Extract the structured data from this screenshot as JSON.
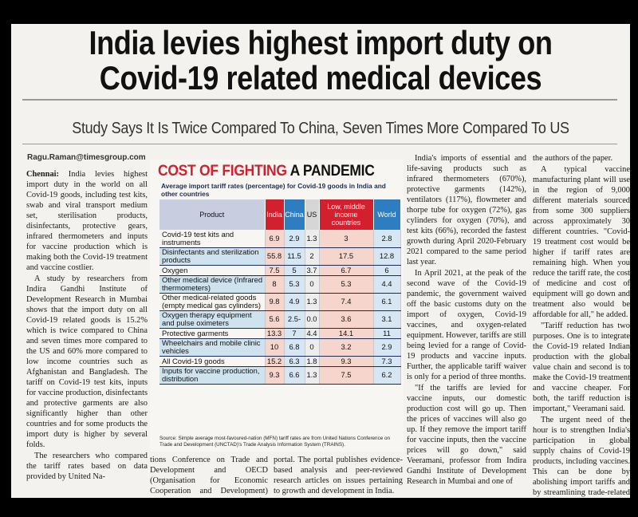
{
  "headline": {
    "line1": "India levies highest import duty on",
    "line2": "Covid-19 related medical devices"
  },
  "subhead": "Study Says It Is Twice Compared To China, Seven Times More Compared To US",
  "byline": "Ragu.Raman@timesgroup.com",
  "infographic": {
    "title_red": "COST OF FIGHTING",
    "title_black": "A PANDEMIC",
    "description": "Average import tariff rates (percentage) for Covid-19 goods in India and other countries",
    "columns": [
      "Product",
      "India",
      "China",
      "US",
      "Low, middle income countries",
      "World"
    ],
    "rows": [
      {
        "product": "Covid-19 test kits and instruments",
        "india": "6.9",
        "china": "2.9",
        "us": "1.3",
        "low_middle": "3",
        "world": "2.8"
      },
      {
        "product": "Disinfectants and sterilization products",
        "india": "55.8",
        "china": "11.5",
        "us": "2",
        "low_middle": "17.5",
        "world": "12.8"
      },
      {
        "product": "Oxygen",
        "india": "7.5",
        "china": "5",
        "us": "3.7",
        "low_middle": "6.7",
        "world": "6"
      },
      {
        "product": "Other medical device (Infrared thermometers)",
        "india": "8",
        "china": "5.3",
        "us": "0",
        "low_middle": "5.3",
        "world": "4.4"
      },
      {
        "product": "Other medical-related goods (empty medical gas cylinders)",
        "india": "9.8",
        "china": "4.9",
        "us": "1.3",
        "low_middle": "7.4",
        "world": "6.1"
      },
      {
        "product": "Oxygen therapy equipment and pulse oximeters",
        "india": "5.6",
        "china": "2.5-",
        "us": "0.0",
        "low_middle": "3.6",
        "world": "3.1"
      },
      {
        "product": "Protective garments",
        "india": "13.3",
        "china": "7",
        "us": "4.4",
        "low_middle": "14.1",
        "world": "11"
      },
      {
        "product": "Wheelchairs and mobile clinic vehicles",
        "india": "10",
        "china": "6.8",
        "us": "0",
        "low_middle": "3.2",
        "world": "2.9"
      },
      {
        "product": "All Covid-19 goods",
        "india": "15.2",
        "china": "6.3",
        "us": "1.8",
        "low_middle": "9.3",
        "world": "7.3"
      },
      {
        "product": "Inputs for vaccine production, distribution",
        "india": "9.3",
        "china": "6.6",
        "us": "1.3",
        "low_middle": "7.5",
        "world": "6.2"
      }
    ],
    "source": "Source: Simple average most-favoured-nation (MFN) tariff rates are from United Nations Conference on Trade and Development (UNCTAD)'s Trade Analysis Information System (TRAINS)."
  },
  "article": {
    "col1": [
      {
        "dateline": "Chennai:",
        "text": "India levies highest import duty in the world on all Covid-19 goods, including test kits, swab and viral transport medium set, sterilisation products, disinfectants, protective gears, infrared thermometers and inputs for vaccine production which is making both the Covid-19 treatment and vaccine costlier."
      },
      {
        "dateline": "",
        "text": "A study by researchers from Indira Gandhi Institute of Development Research in Mumbai shows that the import duty on all Covid-19 related goods is 15.2% which is twice compared to China and seven times more compared to the US and 60% more compared to low income countries such as Afghanistan and Bangladesh. The tariff on Covid-19 test kits, inputs for vaccine production, disinfectants and protective garments are also significantly higher than other countries and for some products the import duty is higher by several folds."
      },
      {
        "dateline": "",
        "text": "The researchers who compared the tariff rates based on data provided by United Na-"
      }
    ],
    "col2": "tions Conference on Trade and Development and OECD (Organisation for Economic Cooperation and Development) published a paper on Ideas for India (I4I) economics and policy",
    "col3": "portal. The portal publishes evidence-based analysis and peer-reviewed research articles on issues pertaining to growth and development in India.",
    "col4": [
      "India's imports of essential and life-saving products such as infrared thermometers (670%), protective garments (142%), ventilators (117%), flowmeter and thorpe tube for oxygen (72%), gas cylinders for oxygen (70%), and test kits (66%), recorded the fastest growth during April 2020-February 2021 compared to the same period last year.",
      "In April 2021, at the peak of the second wave of the Covid-19 pandemic, the government waived off the basic customs duty on the import of oxygen, Covid-19 vaccines, and oxygen-related equipment. However, tariffs are still being levied for a range of Covid-19 products and vaccine inputs. Further, the applicable tariff waiver is only for a period of three months.",
      "\"If the tariffs are levied for vaccine inputs, our domestic production cost will go up. Then the prices of vaccines will also go up. If they remove the import tariff for vaccine inputs, then the vaccine prices will go down,\" said Veeramani, professor from Indira Gandhi Institute of Development Research in Mumbai and one of"
    ],
    "col5": [
      "the authors of the paper.",
      "A typical vaccine manufacturing plant will use in the region of 9,000 different materials sourced from some 300 suppliers across approximately 30 different countries. \"Covid-19 treatment cost would be higher if tariff rates are remaining high. When you reduce the tariff rate, the cost of medicine and cost of equipment will go down and treatment also would be affordable for all,\" he added.",
      "\"Tariff reduction has two purposes. One is to integrate the Covid-19 related Indian production with the global value chain and second is to make the Covid-19 treatment and vaccine cheaper. For both, the tariff reduction is important,\" Veeramani said.",
      "The urgent need of the hour is to strengthen India's participation in global supply chains of Covid-19 products, including vaccines. This can be done by abolishing import tariffs and by streamlining trade-related processes at and within the border, authors C Veeramani, Anwesha Basu said in the article."
    ]
  },
  "colors": {
    "red": "#d3202e",
    "blue": "#2f7dc1",
    "navy": "#1d2d55"
  }
}
